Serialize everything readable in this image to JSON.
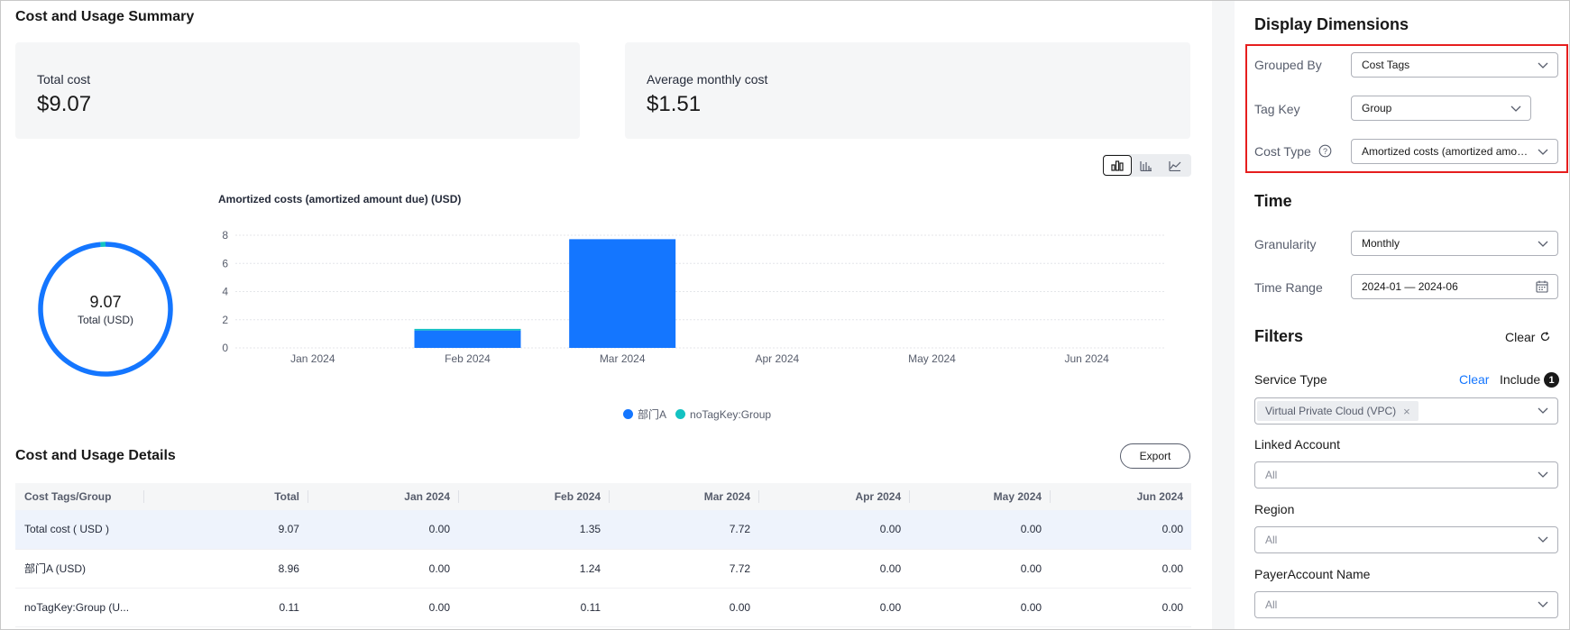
{
  "summary": {
    "title": "Cost and Usage Summary",
    "total_cost_label": "Total cost",
    "total_cost_value": "$9.07",
    "avg_cost_label": "Average monthly cost",
    "avg_cost_value": "$1.51"
  },
  "chart_switch": {
    "options": [
      "bar-chart-icon",
      "stacked-bar-icon",
      "line-chart-icon"
    ],
    "selected": "bar-chart-icon"
  },
  "donut": {
    "value": "9.07",
    "label": "Total (USD)"
  },
  "chart_data": [
    {
      "type": "pie",
      "title": "",
      "categories": [
        "部门A",
        "noTagKey:Group"
      ],
      "values": [
        8.96,
        0.11
      ],
      "colors": [
        "#1476ff",
        "#13c2c2"
      ]
    },
    {
      "type": "bar",
      "title": "Amortized costs (amortized amount due)  (USD)",
      "categories": [
        "Jan 2024",
        "Feb 2024",
        "Mar 2024",
        "Apr 2024",
        "May 2024",
        "Jun 2024"
      ],
      "series": [
        {
          "name": "部门A",
          "values": [
            0,
            1.24,
            7.72,
            0,
            0,
            0
          ],
          "color": "#1476ff"
        },
        {
          "name": "noTagKey:Group",
          "values": [
            0,
            0.11,
            0,
            0,
            0,
            0
          ],
          "color": "#13c2c2"
        }
      ],
      "stacked": true,
      "ylim": [
        0,
        8
      ],
      "yticks": [
        0,
        2,
        4,
        6,
        8
      ],
      "grid": true,
      "legend": "bottom"
    }
  ],
  "details": {
    "title": "Cost and Usage Details",
    "export_label": "Export",
    "columns": [
      "Cost Tags/Group",
      "Total",
      "Jan 2024",
      "Feb 2024",
      "Mar 2024",
      "Apr 2024",
      "May 2024",
      "Jun 2024"
    ],
    "rows": [
      [
        "Total cost ( USD )",
        "9.07",
        "0.00",
        "1.35",
        "7.72",
        "0.00",
        "0.00",
        "0.00"
      ],
      [
        "部门A (USD)",
        "8.96",
        "0.00",
        "1.24",
        "7.72",
        "0.00",
        "0.00",
        "0.00"
      ],
      [
        "noTagKey:Group (U...",
        "0.11",
        "0.00",
        "0.11",
        "0.00",
        "0.00",
        "0.00",
        "0.00"
      ]
    ]
  },
  "display_dimensions": {
    "title": "Display Dimensions",
    "grouped_by_label": "Grouped By",
    "grouped_by_value": "Cost Tags",
    "tag_key_label": "Tag Key",
    "tag_key_value": "Group",
    "cost_type_label": "Cost Type",
    "cost_type_value": "Amortized costs (amortized amount due)"
  },
  "time": {
    "title": "Time",
    "granularity_label": "Granularity",
    "granularity_value": "Monthly",
    "range_label": "Time Range",
    "range_value": "2024-01 — 2024-06"
  },
  "filters": {
    "title": "Filters",
    "clear_label": "Clear",
    "service_type_label": "Service Type",
    "service_clear": "Clear",
    "include_label": "Include",
    "include_count": "1",
    "service_tag": "Virtual Private Cloud (VPC)",
    "linked_account_label": "Linked Account",
    "linked_account_value": "All",
    "region_label": "Region",
    "region_value": "All",
    "payer_label": "PayerAccount Name",
    "payer_value": "All"
  }
}
